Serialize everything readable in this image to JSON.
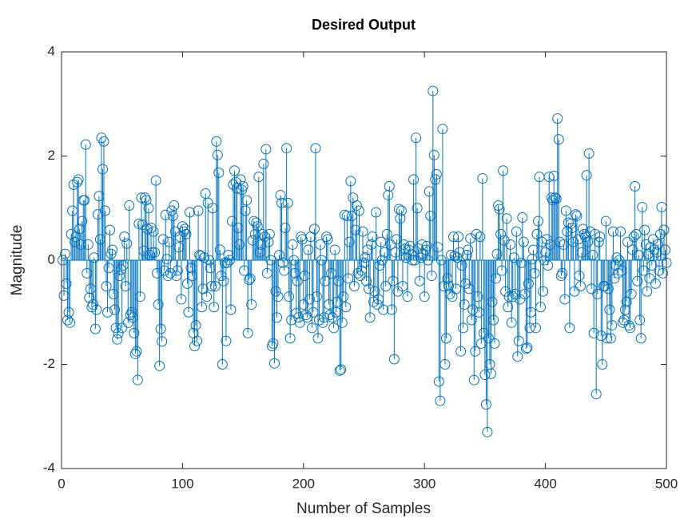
{
  "chart_data": {
    "type": "stem",
    "title": "Desired Output",
    "x_label": "Number of Samples",
    "y_label": "Magnitude",
    "color": "#0072bd",
    "grid": false,
    "xlim": [
      0,
      500
    ],
    "xticks": [
      0,
      100,
      200,
      300,
      400,
      500
    ],
    "ylim": [
      -4,
      4
    ],
    "yticks": [
      -4,
      -2,
      0,
      2,
      4
    ],
    "x": [
      1,
      2,
      3,
      4,
      5,
      6,
      7,
      8,
      9,
      10,
      11,
      12,
      13,
      14,
      15,
      16,
      17,
      18,
      19,
      20,
      21,
      22,
      23,
      24,
      25,
      26,
      27,
      28,
      29,
      30,
      31,
      32,
      33,
      34,
      35,
      36,
      37,
      38,
      39,
      40,
      41,
      42,
      43,
      44,
      45,
      46,
      47,
      48,
      49,
      50,
      51,
      52,
      53,
      54,
      55,
      56,
      57,
      58,
      59,
      60,
      61,
      62,
      63,
      64,
      65,
      66,
      67,
      68,
      69,
      70,
      71,
      72,
      73,
      74,
      75,
      76,
      77,
      78,
      79,
      80,
      81,
      82,
      83,
      84,
      85,
      86,
      87,
      88,
      89,
      90,
      91,
      92,
      93,
      94,
      95,
      96,
      97,
      98,
      99,
      100,
      101,
      102,
      103,
      104,
      105,
      106,
      107,
      108,
      109,
      110,
      111,
      112,
      113,
      114,
      115,
      116,
      117,
      118,
      119,
      120,
      121,
      122,
      123,
      124,
      125,
      126,
      127,
      128,
      129,
      130,
      131,
      132,
      133,
      134,
      135,
      136,
      137,
      138,
      139,
      140,
      141,
      142,
      143,
      144,
      145,
      146,
      147,
      148,
      149,
      150,
      151,
      152,
      153,
      154,
      155,
      156,
      157,
      158,
      159,
      160,
      161,
      162,
      163,
      164,
      165,
      166,
      167,
      168,
      169,
      170,
      171,
      172,
      173,
      174,
      175,
      176,
      177,
      178,
      179,
      180,
      181,
      182,
      183,
      184,
      185,
      186,
      187,
      188,
      189,
      190,
      191,
      192,
      193,
      194,
      195,
      196,
      197,
      198,
      199,
      200,
      201,
      202,
      203,
      204,
      205,
      206,
      207,
      208,
      209,
      210,
      211,
      212,
      213,
      214,
      215,
      216,
      217,
      218,
      219,
      220,
      221,
      222,
      223,
      224,
      225,
      226,
      227,
      228,
      229,
      230,
      231,
      232,
      233,
      234,
      235,
      236,
      237,
      238,
      239,
      240,
      241,
      242,
      243,
      244,
      245,
      246,
      247,
      248,
      249,
      250,
      251,
      252,
      253,
      254,
      255,
      256,
      257,
      258,
      259,
      260,
      261,
      262,
      263,
      264,
      265,
      266,
      267,
      268,
      269,
      270,
      271,
      272,
      273,
      274,
      275,
      276,
      277,
      278,
      279,
      280,
      281,
      282,
      283,
      284,
      285,
      286,
      287,
      288,
      289,
      290,
      291,
      292,
      293,
      294,
      295,
      296,
      297,
      298,
      299,
      300,
      301,
      302,
      303,
      304,
      305,
      306,
      307,
      308,
      309,
      310,
      311,
      312,
      313,
      314,
      315,
      316,
      317,
      318,
      319,
      320,
      321,
      322,
      323,
      324,
      325,
      326,
      327,
      328,
      329,
      330,
      331,
      332,
      333,
      334,
      335,
      336,
      337,
      338,
      339,
      340,
      341,
      342,
      343,
      344,
      345,
      346,
      347,
      348,
      349,
      350,
      351,
      352,
      353,
      354,
      355,
      356,
      357,
      358,
      359,
      360,
      361,
      362,
      363,
      364,
      365,
      366,
      367,
      368,
      369,
      370,
      371,
      372,
      373,
      374,
      375,
      376,
      377,
      378,
      379,
      380,
      381,
      382,
      383,
      384,
      385,
      386,
      387,
      388,
      389,
      390,
      391,
      392,
      393,
      394,
      395,
      396,
      397,
      398,
      399,
      400,
      401,
      402,
      403,
      404,
      405,
      406,
      407,
      408,
      409,
      410,
      411,
      412,
      413,
      414,
      415,
      416,
      417,
      418,
      419,
      420,
      421,
      422,
      423,
      424,
      425,
      426,
      427,
      428,
      429,
      430,
      431,
      432,
      433,
      434,
      435,
      436,
      437,
      438,
      439,
      440,
      441,
      442,
      443,
      444,
      445,
      446,
      447,
      448,
      449,
      450,
      451,
      452,
      453,
      454,
      455,
      456,
      457,
      458,
      459,
      460,
      461,
      462,
      463,
      464,
      465,
      466,
      467,
      468,
      469,
      470,
      471,
      472,
      473,
      474,
      475,
      476,
      477,
      478,
      479,
      480,
      481,
      482,
      483,
      484,
      485,
      486,
      487,
      488,
      489,
      490,
      491,
      492,
      493,
      494,
      495,
      496,
      497,
      498,
      499,
      500
    ],
    "values": [
      0.0,
      -0.68,
      0.12,
      -0.45,
      -1.15,
      -1.0,
      -1.2,
      0.5,
      0.95,
      1.45,
      0.35,
      0.45,
      1.5,
      1.55,
      0.6,
      0.3,
      0.75,
      1.15,
      1.15,
      2.22,
      -0.25,
      0.3,
      -0.72,
      -0.55,
      -0.9,
      -0.85,
      0.05,
      -1.32,
      -0.95,
      0.88,
      1.23,
      0.4,
      2.35,
      1.75,
      2.28,
      0.95,
      -0.5,
      -1.0,
      -0.15,
      0.58,
      0.12,
      0.2,
      -0.65,
      -0.95,
      -1.3,
      -1.52,
      -1.4,
      -0.3,
      -0.18,
      -1.3,
      -0.1,
      0.45,
      -0.5,
      0.32,
      -1.2,
      1.05,
      -1.05,
      -1.0,
      -1.1,
      -1.4,
      -1.8,
      -1.75,
      -2.3,
      0.7,
      -0.7,
      1.2,
      0.68,
      0.18,
      1.2,
      1.15,
      0.6,
      1.0,
      0.1,
      0.62,
      0.15,
      0.55,
      0.15,
      1.53,
      -0.25,
      -0.85,
      -2.03,
      -1.32,
      -1.56,
      0.4,
      -0.2,
      0.87,
      0.02,
      -0.3,
      0.35,
      -0.25,
      0.95,
      0.85,
      1.05,
      0.55,
      -0.3,
      -0.2,
      0.25,
      0.45,
      -0.75,
      0.65,
      0.55,
      0.6,
      0.5,
      -0.45,
      -1.0,
      0.92,
      -0.15,
      -0.3,
      -1.4,
      -1.65,
      -1.25,
      -1.55,
      0.95,
      0.1,
      0.08,
      -0.9,
      -0.55,
      0.05,
      1.28,
      -0.7,
      1.1,
      0.0,
      -0.15,
      -0.5,
      1.0,
      -0.9,
      -0.5,
      2.28,
      2.02,
      1.68,
      0.2,
      -0.3,
      -2.0,
      -0.4,
      -0.05,
      -1.55,
      -0.05,
      0.1,
      0.0,
      -0.95,
      0.75,
      1.45,
      1.72,
      1.5,
      1.38,
      0.62,
      0.3,
      1.55,
      1.35,
      1.42,
      -0.2,
      0.95,
      1.15,
      -1.4,
      -0.38,
      -0.35,
      -0.85,
      0.38,
      0.75,
      0.5,
      0.72,
      0.65,
      1.6,
      0.15,
      0.3,
      0.5,
      1.85,
      0.45,
      2.13,
      -0.25,
      0.35,
      0.5,
      0.0,
      -1.65,
      -1.6,
      -1.98,
      -0.6,
      -1.1,
      -0.7,
      0.1,
      1.25,
      1.1,
      -0.05,
      -0.2,
      0.62,
      2.15,
      1.1,
      -0.7,
      -1.5,
      -1.15,
      0.3,
      0.0,
      -0.25,
      -1.02,
      -0.4,
      -1.1,
      -1.2,
      0.45,
      0.4,
      -0.85,
      -0.3,
      -1.05,
      -1.1,
      0.2,
      -0.75,
      0.45,
      -1.3,
      -1.0,
      0.6,
      2.15,
      -0.7,
      -1.5,
      -1.15,
      0.3,
      0.0,
      -1.2,
      -1.1,
      -0.4,
      0.45,
      0.4,
      -0.85,
      -1.05,
      -0.25,
      -1.1,
      -1.3,
      0.2,
      -1.0,
      -0.8,
      -0.4,
      -2.12,
      -2.1,
      -1.2,
      -0.7,
      0.87,
      -0.9,
      0.85,
      -0.35,
      0.35,
      1.52,
      0.85,
      1.2,
      -0.5,
      0.58,
      1.05,
      -0.25,
      0.95,
      -0.3,
      -0.2,
      0.55,
      -0.05,
      0.05,
      -0.4,
      0.2,
      -0.55,
      -1.1,
      0.3,
      0.45,
      -0.8,
      -0.6,
      0.92,
      -0.85,
      -0.75,
      -0.1,
      0.35,
      0.0,
      -0.95,
      0.15,
      -0.5,
      0.5,
      1.25,
      1.42,
      0.3,
      -0.95,
      -0.4,
      -1.9,
      0.15,
      0.4,
      -0.6,
      0.98,
      0.8,
      0.95,
      -0.5,
      0.3,
      0.22,
      0.05,
      -0.7,
      0.2,
      0.27,
      0.12,
      0.0,
      1.55,
      0.0,
      2.35,
      1.0,
      0.22,
      -0.4,
      0.05,
      0.3,
      0.12,
      -0.7,
      0.2,
      0.27,
      0.0,
      1.32,
      0.85,
      -0.3,
      3.25,
      2.02,
      1.55,
      1.65,
      0.25,
      -2.33,
      -2.7,
      0.0,
      2.52,
      -0.5,
      -2.0,
      -1.5,
      -0.35,
      -0.5,
      -0.65,
      0.1,
      -0.7,
      0.45,
      0.08,
      -0.55,
      0.05,
      0.45,
      0.15,
      -1.75,
      -0.1,
      -1.3,
      -0.85,
      -0.45,
      0.1,
      0.2,
      -0.55,
      0.42,
      -1.15,
      -0.95,
      -2.3,
      -1.75,
      0.5,
      -0.7,
      -1.0,
      0.45,
      -1.6,
      1.57,
      -1.4,
      -2.2,
      -2.77,
      -3.3,
      -1.5,
      -2.0,
      -2.18,
      -0.8,
      -1.15,
      -1.6,
      -0.35,
      0.12,
      1.05,
      0.98,
      0.5,
      -0.2,
      1.72,
      0.38,
      -0.6,
      0.8,
      -0.9,
      -0.7,
      0.3,
      -1.2,
      -0.7,
      0.05,
      -0.65,
      0.55,
      -1.85,
      -1.55,
      -0.75,
      -0.05,
      0.82,
      0.35,
      -0.65,
      -1.7,
      -1.68,
      -0.45,
      -1.3,
      -1.0,
      0.02,
      0.2,
      -0.25,
      -1.3,
      0.5,
      0.75,
      1.6,
      -0.9,
      0.35,
      -0.6,
      0.0,
      0.15,
      0.4,
      -0.1,
      1.6,
      0.3,
      1.2,
      1.15,
      1.62,
      1.2,
      1.18,
      2.72,
      2.32,
      0.35,
      -0.3,
      -0.25,
      0.3,
      -0.75,
      0.95,
      0.55,
      0.72,
      -1.3,
      0.7,
      0.62,
      0.35,
      -0.6,
      0.88,
      0.85,
      0.4,
      -0.3,
      -0.5,
      0.15,
      0.6,
      0.5,
      0.45,
      1.63,
      0.35,
      2.05,
      0.55,
      -0.55,
      0.1,
      -1.4,
      0.5,
      -2.57,
      -0.65,
      0.35,
      0.45,
      -1.45,
      -2.0,
      -0.5,
      -0.5,
      0.75,
      -1.5,
      -0.55,
      -0.95,
      -1.5,
      -1.25,
      0.55,
      -0.35,
      -0.1,
      0.05,
      -0.25,
      0.0,
      0.55,
      -0.2,
      -1.2,
      -1.15,
      -0.95,
      -0.8,
      0.35,
      -1.25,
      -1.3,
      -0.65,
      0.2,
      0.45,
      1.42,
      0.5,
      -0.4,
      0.1,
      -1.15,
      -1.5,
      1.02,
      -0.2,
      0.58,
      0.3,
      -0.6,
      0.12,
      -0.35,
      0.25,
      -0.1,
      0.4,
      0.2,
      -0.45,
      0.15,
      0.3,
      -0.2,
      0.5,
      1.02,
      -0.25,
      0.58,
      0.2,
      -0.05
    ]
  }
}
